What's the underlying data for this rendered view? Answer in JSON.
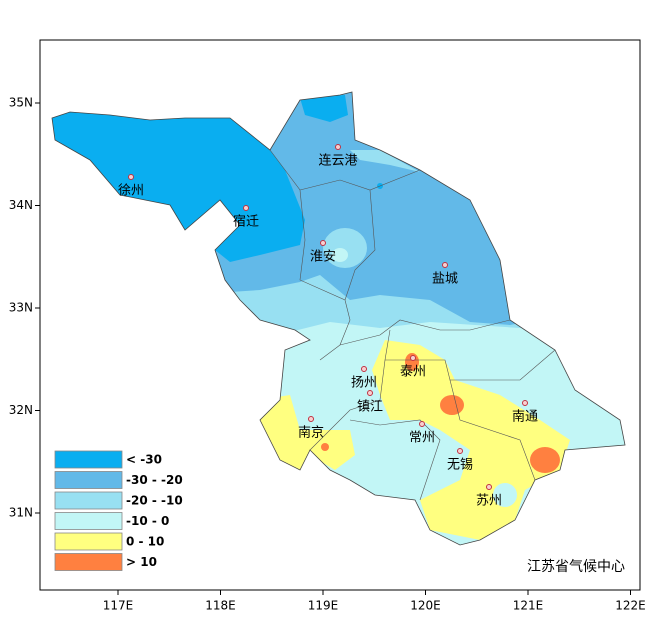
{
  "map": {
    "x_ticks": [
      {
        "value": 117,
        "label": "117E"
      },
      {
        "value": 118,
        "label": "118E"
      },
      {
        "value": 119,
        "label": "119E"
      },
      {
        "value": 120,
        "label": "120E"
      },
      {
        "value": 121,
        "label": "121E"
      },
      {
        "value": 122,
        "label": "122E"
      }
    ],
    "y_ticks": [
      {
        "value": 35,
        "label": "35N"
      },
      {
        "value": 34,
        "label": "34N"
      },
      {
        "value": 33,
        "label": "33N"
      },
      {
        "value": 32,
        "label": "32N"
      },
      {
        "value": 31,
        "label": "31N"
      }
    ],
    "cities": [
      "徐州",
      "连云港",
      "宿迁",
      "淮安",
      "盐城",
      "泰州",
      "扬州",
      "镇江",
      "南京",
      "常州",
      "南通",
      "无锡",
      "苏州"
    ],
    "legend": [
      {
        "label": "< -30",
        "color": "#0aaef0"
      },
      {
        "label": "-30 - -20",
        "color": "#62b9e8"
      },
      {
        "label": "-20 - -10",
        "color": "#98e0f2"
      },
      {
        "label": "-10 - 0",
        "color": "#c2f6f6"
      },
      {
        "label": "0 - 10",
        "color": "#ffff80"
      },
      {
        "label": "> 10",
        "color": "#ff8040"
      }
    ],
    "credit": "江苏省气候中心"
  }
}
